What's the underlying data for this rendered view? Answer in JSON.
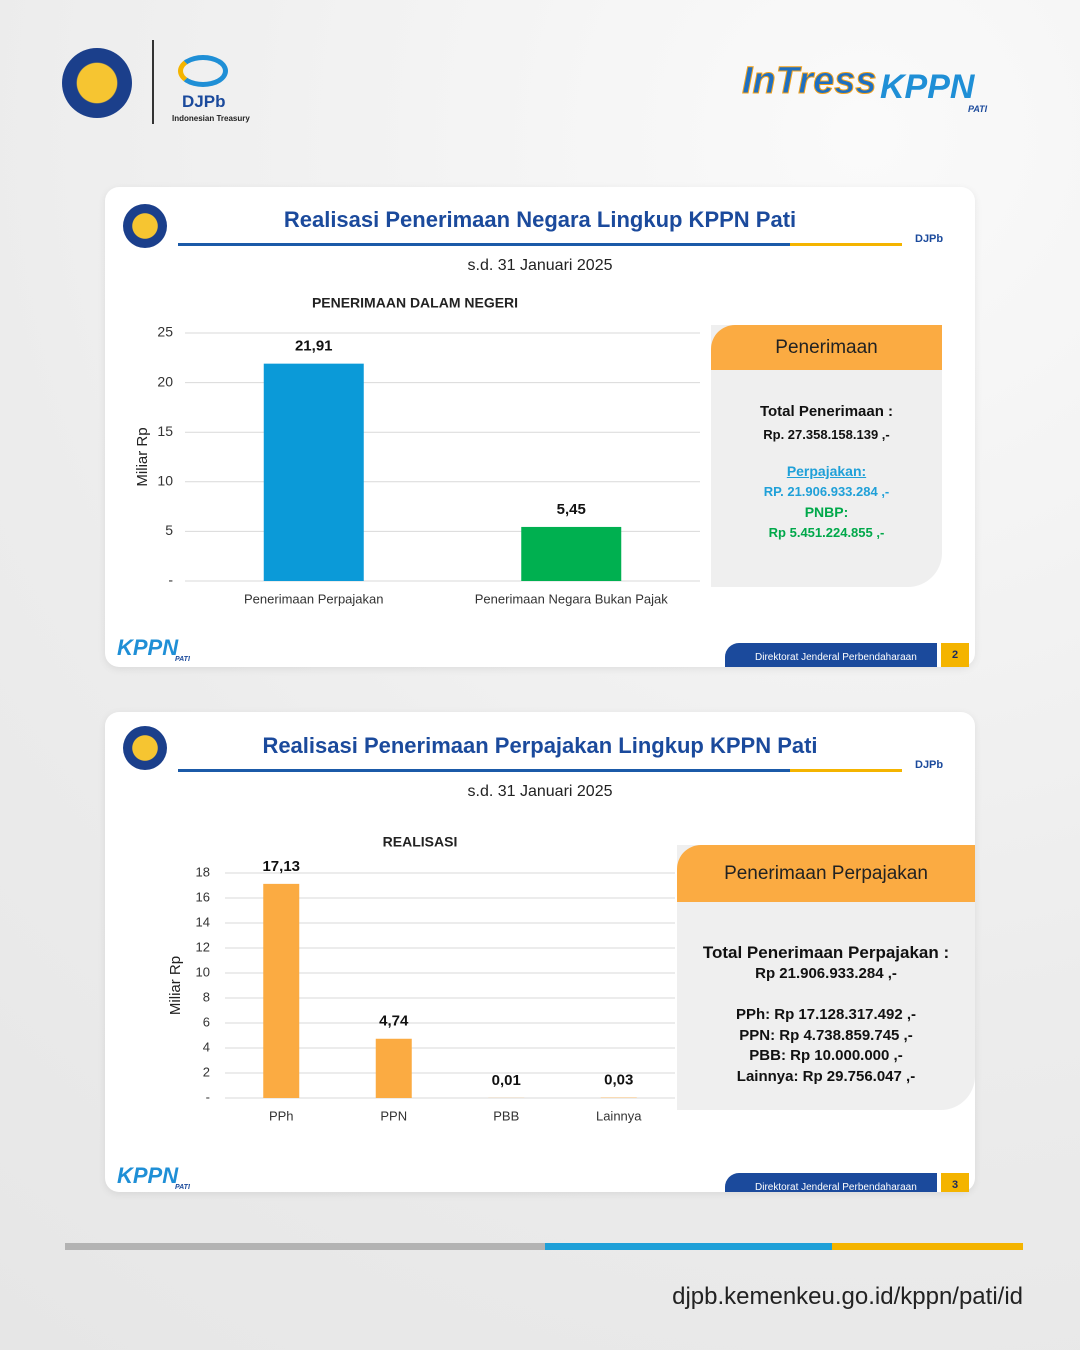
{
  "branding": {
    "djpb": "DJPb",
    "djpb_sub": "Indonesian Treasury",
    "intress": "InTress",
    "kppn": "KPPN",
    "pati": "PATI"
  },
  "slides": [
    {
      "title": "Realisasi Penerimaan Negara Lingkup KPPN Pati",
      "date": "s.d. 31 Januari 2025",
      "panel": {
        "heading": "Penerimaan",
        "lines": [
          "Total Penerimaan :",
          "Rp. 27.358.158.139   ,-",
          "Perpajakan:",
          "RP. 21.906.933.284  ,-",
          "PNBP:",
          "Rp 5.451.224.855  ,-"
        ]
      },
      "footer": "Direktorat Jenderal Perbendaharaan",
      "page": "2"
    },
    {
      "title": "Realisasi Penerimaan Perpajakan Lingkup KPPN Pati",
      "date": "s.d. 31 Januari 2025",
      "panel": {
        "heading": "Penerimaan Perpajakan",
        "lines": [
          "Total Penerimaan Perpajakan :",
          "Rp 21.906.933.284 ,-",
          "PPh: Rp 17.128.317.492 ,-",
          "PPN: Rp 4.738.859.745 ,-",
          "PBB: Rp 10.000.000 ,-",
          "Lainnya: Rp 29.756.047 ,-"
        ]
      },
      "footer": "Direktorat Jenderal Perbendaharaan",
      "page": "3"
    }
  ],
  "chart_data": [
    {
      "type": "bar",
      "title": "PENERIMAAN DALAM NEGERI",
      "y_label": "Miliar Rp",
      "categories": [
        "Penerimaan Perpajakan",
        "Penerimaan Negara Bukan Pajak"
      ],
      "values": [
        21.91,
        5.45
      ],
      "value_labels": [
        "21,91",
        "5,45"
      ],
      "colors": [
        "#0b9ad8",
        "#00b050"
      ],
      "ylim": [
        0,
        25
      ],
      "yticks": [
        {
          "value": 0,
          "label": "-"
        },
        5,
        10,
        15,
        20,
        25
      ],
      "grid": true
    },
    {
      "type": "bar",
      "title": "REALISASI",
      "y_label": "Miliar Rp",
      "categories": [
        "PPh",
        "PPN",
        "PBB",
        "Lainnya"
      ],
      "values": [
        17.13,
        4.74,
        0.01,
        0.03
      ],
      "value_labels": [
        "17,13",
        "4,74",
        "0,01",
        "0,03"
      ],
      "colors": [
        "#fbab42",
        "#fbab42",
        "#fbab42",
        "#fbab42"
      ],
      "ylim": [
        0,
        18
      ],
      "yticks": [
        {
          "value": 0,
          "label": "-"
        },
        2,
        4,
        6,
        8,
        10,
        12,
        14,
        16,
        18
      ],
      "grid": true
    }
  ],
  "url": "djpb.kemenkeu.go.id/kppn/pati/id"
}
